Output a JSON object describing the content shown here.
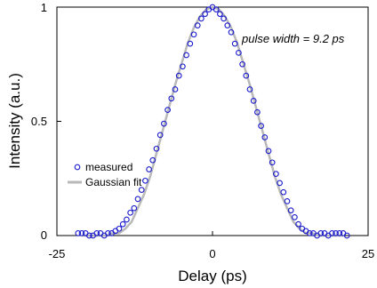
{
  "chart_data": {
    "type": "scatter",
    "title": "",
    "xlabel": "Delay (ps)",
    "ylabel": "Intensity (a.u.)",
    "xlim": [
      -25,
      25
    ],
    "ylim": [
      0,
      1
    ],
    "x_ticks": [
      "-25",
      "0",
      "25"
    ],
    "y_ticks": [
      "0",
      "0.5",
      "1"
    ],
    "grid": false,
    "legend_position": "middle-left",
    "annotation": "pulse width = 9.2 ps",
    "colors": {
      "measured": "#1a1acc",
      "fit": "#b8b8b8"
    },
    "series": [
      {
        "name": "measured",
        "kind": "markers",
        "x": [
          -21.6,
          -21.0,
          -20.4,
          -19.8,
          -19.2,
          -18.6,
          -18.0,
          -17.4,
          -16.8,
          -16.2,
          -15.6,
          -15.0,
          -14.4,
          -13.8,
          -13.2,
          -12.6,
          -12.0,
          -11.4,
          -10.8,
          -10.2,
          -9.6,
          -9.0,
          -8.4,
          -7.8,
          -7.2,
          -6.6,
          -6.0,
          -5.4,
          -4.8,
          -4.2,
          -3.6,
          -3.0,
          -2.4,
          -1.8,
          -1.2,
          -0.6,
          0.0,
          0.6,
          1.2,
          1.8,
          2.4,
          3.0,
          3.6,
          4.2,
          4.8,
          5.4,
          6.0,
          6.6,
          7.2,
          7.8,
          8.4,
          9.0,
          9.6,
          10.2,
          10.8,
          11.4,
          12.0,
          12.6,
          13.2,
          13.8,
          14.4,
          15.0,
          15.6,
          16.2,
          16.8,
          17.4,
          18.0,
          18.6,
          19.2,
          19.8,
          20.4,
          21.0,
          21.6
        ],
        "y": [
          0.01,
          0.01,
          0.01,
          0.0,
          0.0,
          0.01,
          0.01,
          0.0,
          0.01,
          0.01,
          0.02,
          0.03,
          0.05,
          0.07,
          0.1,
          0.12,
          0.16,
          0.2,
          0.24,
          0.29,
          0.33,
          0.38,
          0.44,
          0.49,
          0.55,
          0.6,
          0.64,
          0.7,
          0.74,
          0.79,
          0.84,
          0.88,
          0.92,
          0.95,
          0.97,
          0.99,
          1.0,
          0.99,
          0.97,
          0.95,
          0.92,
          0.89,
          0.84,
          0.8,
          0.75,
          0.7,
          0.64,
          0.59,
          0.54,
          0.48,
          0.43,
          0.37,
          0.32,
          0.27,
          0.23,
          0.19,
          0.15,
          0.11,
          0.08,
          0.05,
          0.03,
          0.02,
          0.01,
          0.01,
          0.0,
          0.01,
          0.01,
          0.0,
          0.01,
          0.01,
          0.01,
          0.01,
          0.0
        ]
      },
      {
        "name": "Gaussian fit",
        "kind": "line",
        "x": [
          -21.0,
          -20.0,
          -19.0,
          -18.0,
          -17.0,
          -16.0,
          -15.0,
          -14.0,
          -13.0,
          -12.0,
          -11.0,
          -10.0,
          -9.0,
          -8.0,
          -7.0,
          -6.0,
          -5.0,
          -4.0,
          -3.0,
          -2.0,
          -1.0,
          0.0,
          1.0,
          2.0,
          3.0,
          4.0,
          5.0,
          6.0,
          7.0,
          8.0,
          9.0,
          10.0,
          11.0,
          12.0,
          13.0,
          14.0,
          15.0,
          16.0,
          17.0,
          18.0,
          19.0,
          20.0,
          21.0
        ],
        "y": [
          0.0,
          0.0,
          0.0,
          0.0,
          0.0,
          0.01,
          0.01,
          0.03,
          0.06,
          0.12,
          0.18,
          0.26,
          0.36,
          0.46,
          0.56,
          0.66,
          0.75,
          0.84,
          0.91,
          0.96,
          0.99,
          1.0,
          0.99,
          0.96,
          0.91,
          0.84,
          0.75,
          0.66,
          0.56,
          0.46,
          0.36,
          0.26,
          0.18,
          0.12,
          0.06,
          0.03,
          0.01,
          0.01,
          0.0,
          0.0,
          0.0,
          0.0,
          0.0
        ]
      }
    ]
  }
}
